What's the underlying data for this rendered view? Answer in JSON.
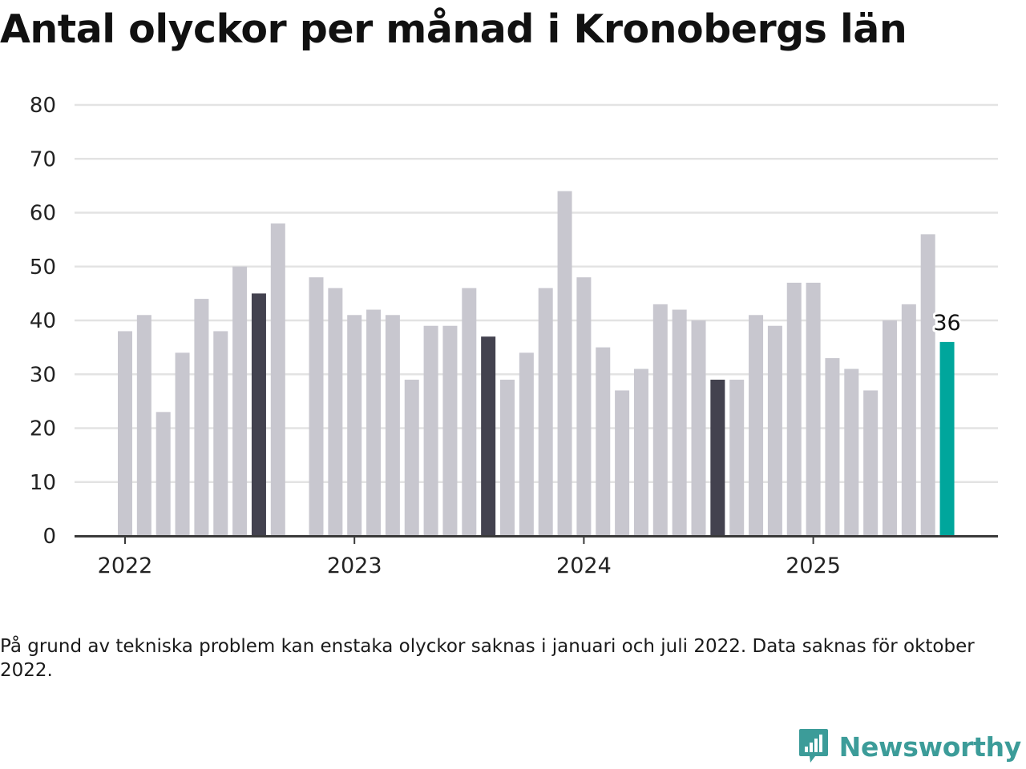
{
  "title": "Antal olyckor per månad i Kronobergs län",
  "note": "På grund av tekniska problem kan enstaka olyckor saknas i januari och juli 2022. Data saknas för oktober 2022.",
  "brand": {
    "name": "Newsworthy",
    "icon": "bar-chart-speech-bubble-icon",
    "color": "#3c9c99"
  },
  "colors": {
    "default": "#c8c7cf",
    "highlight": "#43424f",
    "latest": "#00a69c",
    "grid": "#e3e3e3",
    "axis": "#3a3a3a"
  },
  "chart_data": {
    "type": "bar",
    "title": "Antal olyckor per månad i Kronobergs län",
    "xlabel": "",
    "ylabel": "",
    "ylim": [
      0,
      80
    ],
    "yticks": [
      0,
      10,
      20,
      30,
      40,
      50,
      60,
      70,
      80
    ],
    "xticks": [
      "2022",
      "2023",
      "2024",
      "2025"
    ],
    "grid": true,
    "latest_label": "36",
    "bars": [
      {
        "month": "2022-01",
        "value": 38
      },
      {
        "month": "2022-02",
        "value": 41
      },
      {
        "month": "2022-03",
        "value": 23
      },
      {
        "month": "2022-04",
        "value": 34
      },
      {
        "month": "2022-05",
        "value": 44
      },
      {
        "month": "2022-06",
        "value": 38
      },
      {
        "month": "2022-07",
        "value": 50
      },
      {
        "month": "2022-08",
        "value": 45,
        "highlight": true
      },
      {
        "month": "2022-09",
        "value": 58
      },
      {
        "month": "2022-10",
        "value": null
      },
      {
        "month": "2022-11",
        "value": 48
      },
      {
        "month": "2022-12",
        "value": 46
      },
      {
        "month": "2023-01",
        "value": 41
      },
      {
        "month": "2023-02",
        "value": 42
      },
      {
        "month": "2023-03",
        "value": 41
      },
      {
        "month": "2023-04",
        "value": 29
      },
      {
        "month": "2023-05",
        "value": 39
      },
      {
        "month": "2023-06",
        "value": 39
      },
      {
        "month": "2023-07",
        "value": 46
      },
      {
        "month": "2023-08",
        "value": 37,
        "highlight": true
      },
      {
        "month": "2023-09",
        "value": 29
      },
      {
        "month": "2023-10",
        "value": 34
      },
      {
        "month": "2023-11",
        "value": 46
      },
      {
        "month": "2023-12",
        "value": 64
      },
      {
        "month": "2024-01",
        "value": 48
      },
      {
        "month": "2024-02",
        "value": 35
      },
      {
        "month": "2024-03",
        "value": 27
      },
      {
        "month": "2024-04",
        "value": 31
      },
      {
        "month": "2024-05",
        "value": 43
      },
      {
        "month": "2024-06",
        "value": 42
      },
      {
        "month": "2024-07",
        "value": 40
      },
      {
        "month": "2024-08",
        "value": 29,
        "highlight": true
      },
      {
        "month": "2024-09",
        "value": 29
      },
      {
        "month": "2024-10",
        "value": 41
      },
      {
        "month": "2024-11",
        "value": 39
      },
      {
        "month": "2024-12",
        "value": 47
      },
      {
        "month": "2025-01",
        "value": 47
      },
      {
        "month": "2025-02",
        "value": 33
      },
      {
        "month": "2025-03",
        "value": 31
      },
      {
        "month": "2025-04",
        "value": 27
      },
      {
        "month": "2025-05",
        "value": 40
      },
      {
        "month": "2025-06",
        "value": 43
      },
      {
        "month": "2025-07",
        "value": 56
      },
      {
        "month": "2025-08",
        "value": 36,
        "latest": true
      }
    ]
  }
}
